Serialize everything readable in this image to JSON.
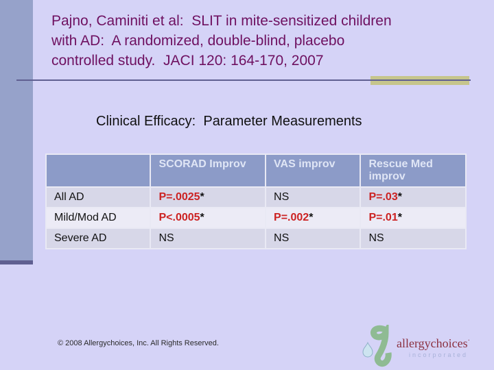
{
  "slide": {
    "background_color": "#d5d3f7",
    "sidebar_color": "#96a2ca",
    "rule_color": "#5f5f91",
    "tan_accent_color": "#c6c58c"
  },
  "title": {
    "color": "#6e1060",
    "lines": [
      "Pajno, Caminiti et al:  SLIT in mite-sensitized children",
      "with AD:  A randomized, double-blind, placebo",
      "controlled study.  JACI 120: 164-170, 2007"
    ]
  },
  "subtitle": "Clinical Efficacy:  Parameter Measurements",
  "table": {
    "header_bg": "#8c9bc8",
    "header_text_color": "#dfe5f5",
    "row_colors": [
      "#d7d7e8",
      "#ecebf6",
      "#d7d7e8"
    ],
    "significant_color": "#cc2222",
    "columns": [
      "",
      "SCORAD Improv",
      "VAS improv",
      "Rescue Med improv"
    ],
    "rows": [
      {
        "label": "All AD",
        "cells": [
          {
            "text": "P=.0025*",
            "significant": true
          },
          {
            "text": "NS",
            "significant": false
          },
          {
            "text": "P=.03*",
            "significant": true
          }
        ]
      },
      {
        "label": "Mild/Mod AD",
        "cells": [
          {
            "text": "P<.0005*",
            "significant": true
          },
          {
            "text": "P=.002*",
            "significant": true
          },
          {
            "text": "P=.01*",
            "significant": true
          }
        ]
      },
      {
        "label": "Severe AD",
        "cells": [
          {
            "text": "NS",
            "significant": false
          },
          {
            "text": "NS",
            "significant": false
          },
          {
            "text": "NS",
            "significant": false
          }
        ]
      }
    ]
  },
  "footer": {
    "copyright": "© 2008 Allergychoices, Inc. All Rights Reserved."
  },
  "logo": {
    "name": "allergychoices",
    "mark": "·",
    "tagline": "incorporated",
    "name_color": "#8b3040",
    "tagline_color": "#a9b2d9",
    "swoosh_color": "#8fbb93",
    "droplet_color": "#cde4f0"
  }
}
